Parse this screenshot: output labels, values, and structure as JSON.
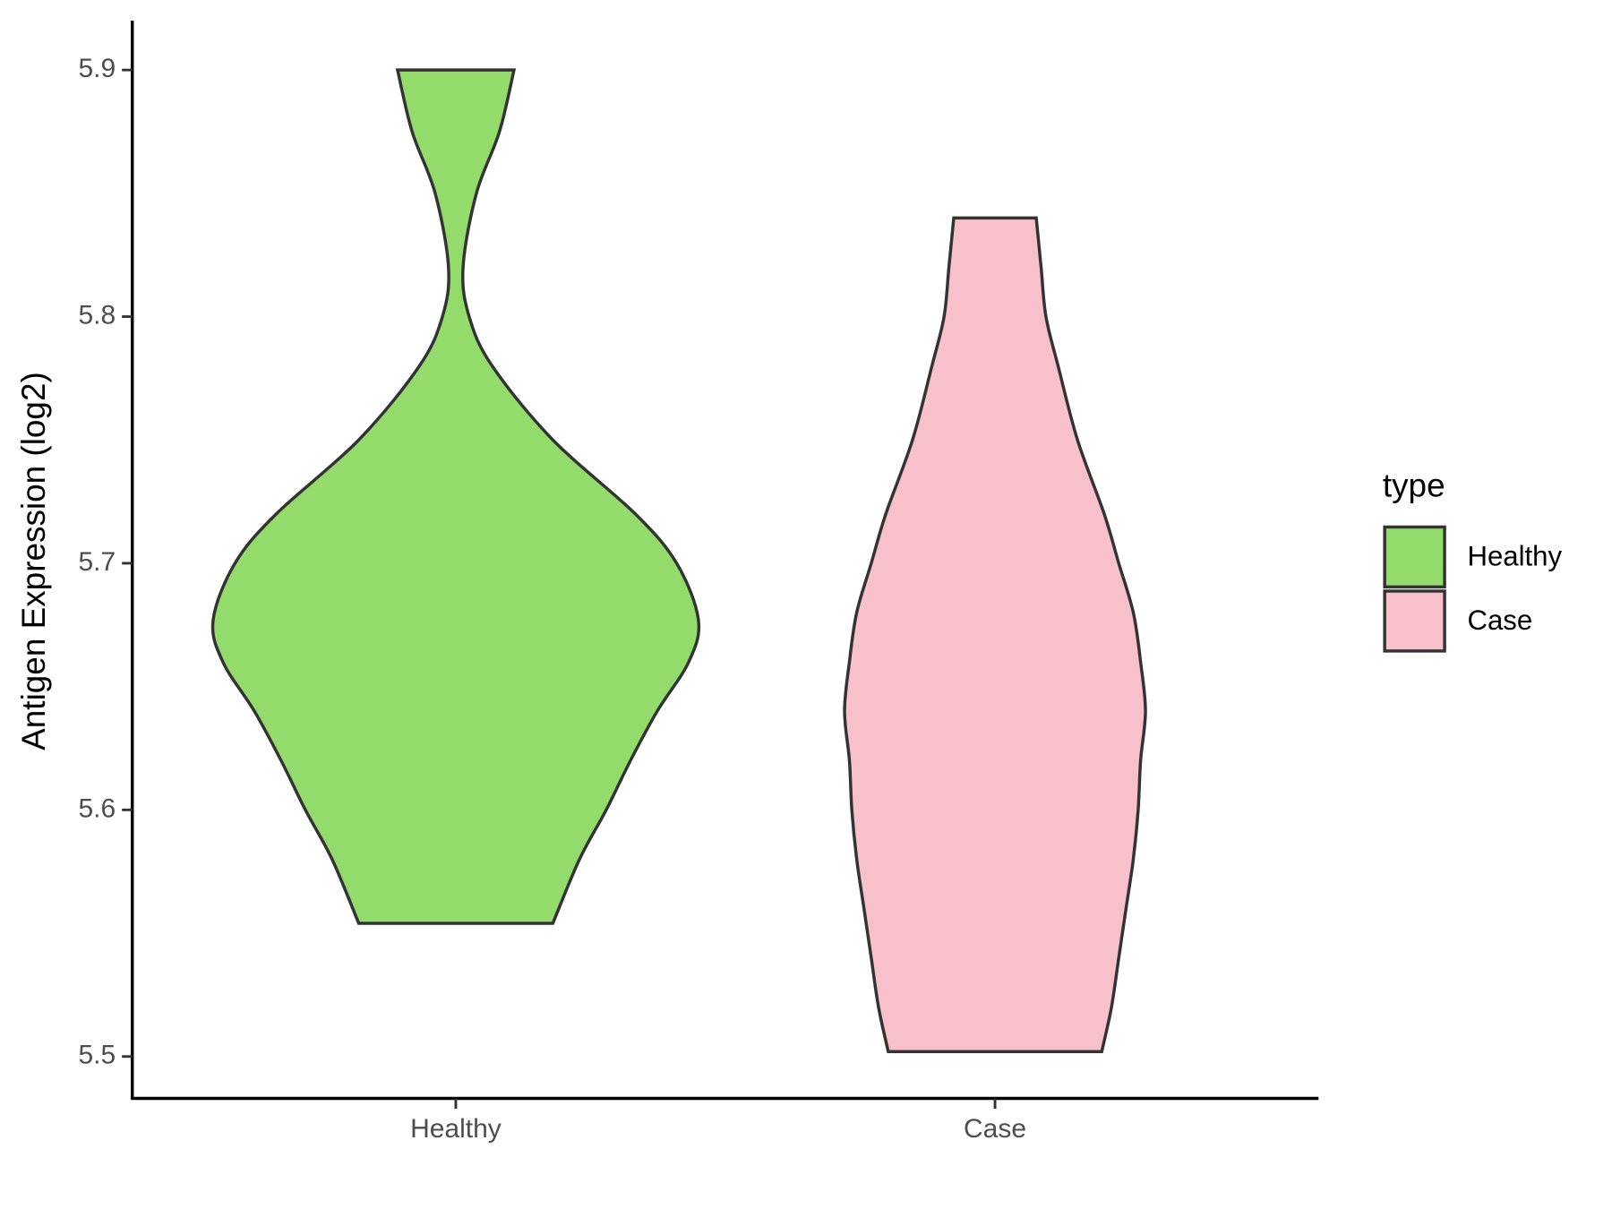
{
  "chart_data": {
    "type": "violin",
    "y_label": "Antigen Expression (log2)",
    "categories": [
      "Healthy",
      "Case"
    ],
    "ylim": [
      5.483,
      5.92
    ],
    "yticks": [
      5.5,
      5.6,
      5.7,
      5.8,
      5.9
    ],
    "legend_title": "type",
    "legend": "right",
    "series": [
      {
        "name": "Healthy",
        "color": "#93dc6b",
        "y": [
          5.9,
          5.875,
          5.85,
          5.82,
          5.8,
          5.78,
          5.75,
          5.72,
          5.7,
          5.677,
          5.66,
          5.64,
          5.62,
          5.6,
          5.58,
          5.554
        ],
        "density": [
          0.24,
          0.18,
          0.085,
          0.03,
          0.055,
          0.15,
          0.4,
          0.74,
          0.91,
          1.0,
          0.96,
          0.83,
          0.72,
          0.62,
          0.51,
          0.4
        ]
      },
      {
        "name": "Case",
        "color": "#f7c0cb",
        "y": [
          5.84,
          5.82,
          5.8,
          5.78,
          5.75,
          5.72,
          5.7,
          5.68,
          5.66,
          5.64,
          5.62,
          5.6,
          5.58,
          5.56,
          5.54,
          5.52,
          5.502
        ],
        "density": [
          0.17,
          0.19,
          0.21,
          0.26,
          0.34,
          0.45,
          0.51,
          0.57,
          0.6,
          0.62,
          0.6,
          0.59,
          0.57,
          0.54,
          0.51,
          0.48,
          0.44
        ]
      }
    ]
  }
}
